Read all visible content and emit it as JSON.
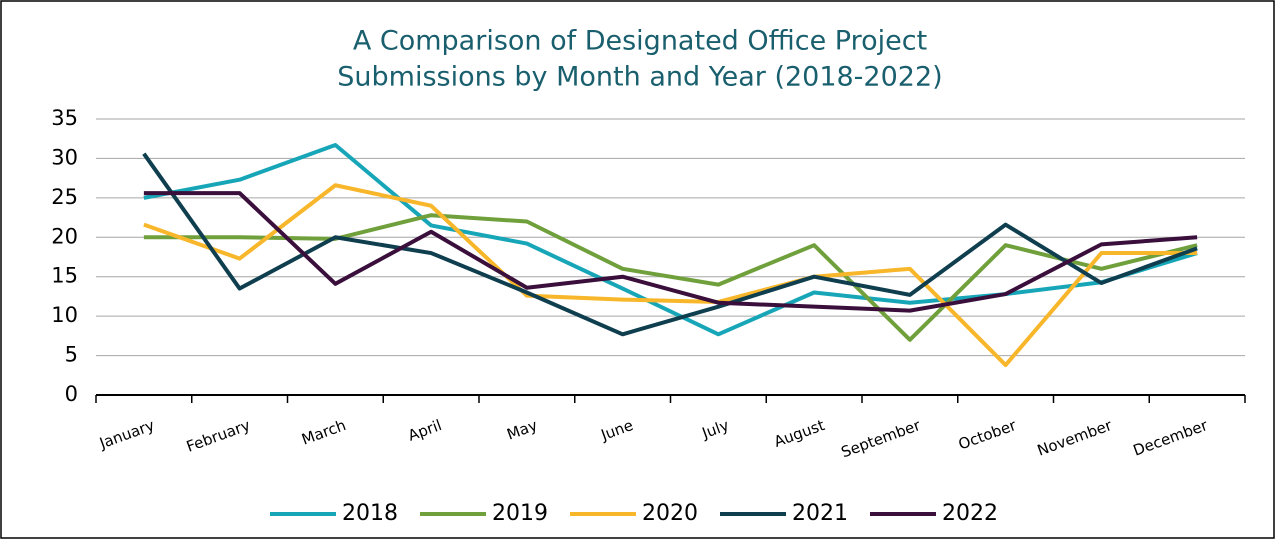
{
  "chart_data": {
    "type": "line",
    "title": [
      "A Comparison of Designated Office Project",
      "Submissions by Month and Year (2018-2022)"
    ],
    "categories": [
      "January",
      "February",
      "March",
      "April",
      "May",
      "June",
      "July",
      "August",
      "September",
      "October",
      "November",
      "December"
    ],
    "series": [
      {
        "name": "2018",
        "color": "#17a6b8",
        "values": [
          25,
          27.3,
          31.7,
          21.5,
          19.2,
          13.5,
          7.7,
          13,
          11.7,
          12.8,
          14.3,
          18
        ]
      },
      {
        "name": "2019",
        "color": "#70a03c",
        "values": [
          20,
          20,
          19.8,
          22.8,
          22,
          16,
          14,
          19,
          7,
          19,
          16,
          19
        ]
      },
      {
        "name": "2020",
        "color": "#f8b62a",
        "values": [
          21.6,
          17.3,
          26.6,
          24,
          12.6,
          12.1,
          11.8,
          15,
          16,
          3.8,
          18,
          18
        ]
      },
      {
        "name": "2021",
        "color": "#0f3f4f",
        "values": [
          30.6,
          13.5,
          20,
          18,
          13,
          7.7,
          11.2,
          15,
          12.7,
          21.6,
          14.2,
          18.6
        ]
      },
      {
        "name": "2022",
        "color": "#3a0f3c",
        "values": [
          25.6,
          25.6,
          14.1,
          20.7,
          13.6,
          15,
          11.7,
          11.2,
          10.7,
          12.8,
          19.1,
          20
        ]
      }
    ],
    "ylim": [
      0,
      35
    ],
    "yticks": [
      0,
      5,
      10,
      15,
      20,
      25,
      30,
      35
    ],
    "grid": true,
    "legend": "bottom"
  }
}
